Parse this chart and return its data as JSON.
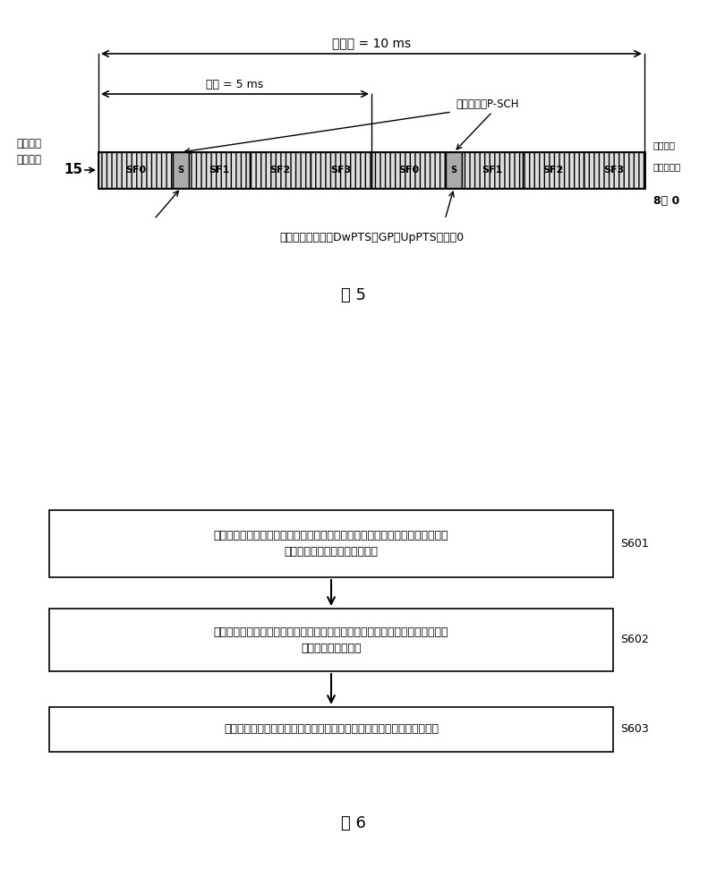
{
  "fig5": {
    "title_radio_frame": "无线帧 = 10 ms",
    "title_half_frame": "半帧 = 5 ms",
    "label_left_line1": "子帧分配",
    "label_left_line2": "图样序号",
    "label_right_top": "时隙比例",
    "label_right_mid": "下行：上行",
    "label_right_ratio": "8： 0",
    "label_15": "15",
    "psch_label": "主同步信号P-SCH",
    "note": "特殊区域中仅包括DwPTS，GP和UpPTS长度丸0",
    "fig_label": "图 5",
    "subframes_first_half": [
      "SF0",
      "S",
      "SF1",
      "SF2",
      "SF3"
    ],
    "subframes_second_half": [
      "SF0",
      "S",
      "SF1",
      "SF2",
      "SF3"
    ],
    "seg_proportions": [
      3.0,
      0.65,
      2.45,
      2.45,
      2.45
    ],
    "bar_hatch_color": "#888888",
    "s_fill": "#aaaaaa",
    "sf_fill": "#dddddd"
  },
  "fig6": {
    "box1_text_line1": "根据上行业务量和下行业务量的比例，确定以至少一个无线帧为子帧分配周期时",
    "box1_text_line2": "上行时隙和下行时隙的配置比例",
    "box2_text_line1": "根据上行时隙和下行时隙的配置比例确定至少一个无线帧中上行业务子帧和下行",
    "box2_text_line2": "业务子帧的分配方式",
    "box3_text": "广播至少一个无线帧中上行业务子帧和下行业务子帧分配方式的指示信息",
    "label_s601": "S601",
    "label_s602": "S602",
    "label_s603": "S603",
    "fig_label": "图 6"
  }
}
